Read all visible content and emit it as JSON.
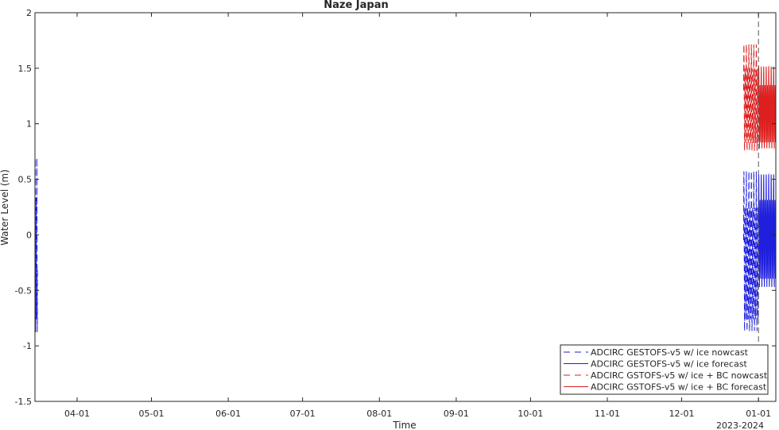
{
  "chart_data": {
    "type": "line",
    "title": "Naze Japan",
    "xlabel": "Time",
    "ylabel": "Water Level (m)",
    "x_year_label": "2023-2024",
    "xlim": [
      "2023-03-15",
      "2024-01-08"
    ],
    "ylim": [
      -1.5,
      2
    ],
    "x_ticks": [
      {
        "date": "2023-04-01",
        "label": "04-01"
      },
      {
        "date": "2023-05-01",
        "label": "05-01"
      },
      {
        "date": "2023-06-01",
        "label": "06-01"
      },
      {
        "date": "2023-07-01",
        "label": "07-01"
      },
      {
        "date": "2023-08-01",
        "label": "08-01"
      },
      {
        "date": "2023-09-01",
        "label": "09-01"
      },
      {
        "date": "2023-10-01",
        "label": "10-01"
      },
      {
        "date": "2023-11-01",
        "label": "11-01"
      },
      {
        "date": "2023-12-01",
        "label": "12-01"
      },
      {
        "date": "2024-01-01",
        "label": "01-01"
      }
    ],
    "y_ticks": [
      {
        "value": 2,
        "label": "2"
      },
      {
        "value": 1.5,
        "label": "1.5"
      },
      {
        "value": 1,
        "label": "1"
      },
      {
        "value": 0.5,
        "label": "0.5"
      },
      {
        "value": 0,
        "label": "0"
      },
      {
        "value": -0.5,
        "label": "-0.5"
      },
      {
        "value": -1,
        "label": "-1"
      },
      {
        "value": -1.5,
        "label": "-1.5"
      }
    ],
    "grid": false,
    "legend_position": "bottom-right",
    "series": [
      {
        "name": "ADCIRC GESTOFS-v5 w/ ice nowcast",
        "color": "#1f1fdd",
        "dash": "dashed",
        "segments": [
          {
            "start": "2023-03-15",
            "end": "2023-03-16",
            "center": -0.15,
            "amplitude": 0.85,
            "cycles": 3
          },
          {
            "start": "2023-12-26",
            "end": "2024-01-01",
            "center": -0.2,
            "amplitude": 0.78,
            "cycles": 12
          }
        ]
      },
      {
        "name": "ADCIRC GESTOFS-v5 w/ ice forecast",
        "color": "#1f1fdd",
        "dash": "solid",
        "segments": [
          {
            "start": "2024-01-01",
            "end": "2024-01-08",
            "center": 0.0,
            "amplitude": 0.55,
            "cycles": 14
          }
        ]
      },
      {
        "name": "ADCIRC GSTOFS-v5 w/ ice + BC nowcast",
        "color": "#dd1f1f",
        "dash": "dashed",
        "segments": [
          {
            "start": "2023-12-26",
            "end": "2024-01-01",
            "center": 1.2,
            "amplitude": 0.52,
            "cycles": 12
          }
        ]
      },
      {
        "name": "ADCIRC GSTOFS-v5 w/ ice + BC forecast",
        "color": "#dd1f1f",
        "dash": "solid",
        "segments": [
          {
            "start": "2024-01-01",
            "end": "2024-01-08",
            "center": 1.12,
            "amplitude": 0.4,
            "cycles": 14
          }
        ]
      }
    ],
    "nowcast_forecast_divider": "2024-01-01"
  }
}
